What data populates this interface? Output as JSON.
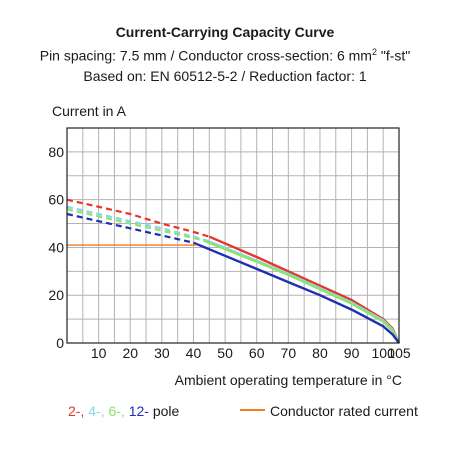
{
  "header": {
    "title": "Current-Carrying Capacity Curve",
    "subtitle_line1_main": "Pin spacing: 7.5 mm / Conductor cross-section: 6 mm",
    "subtitle_line1_sup": "2",
    "subtitle_line1_tail": " \"f-st\"",
    "subtitle_line2": "Based on: EN 60512-5-2 / Reduction factor: 1"
  },
  "legend": {
    "poles_sep": ", ",
    "poles_suffix": " pole",
    "rated_label": "Conductor rated current",
    "rated_color": "#f07d22"
  },
  "chart_data": {
    "type": "line",
    "xlabel": "Ambient operating temperature in °C",
    "ylabel": "Current in A",
    "xlim": [
      0,
      105
    ],
    "ylim": [
      0,
      90
    ],
    "x_ticks": [
      10,
      20,
      30,
      40,
      50,
      60,
      70,
      80,
      90,
      100,
      105
    ],
    "y_ticks": [
      0,
      20,
      40,
      60,
      80
    ],
    "grid": true,
    "series": [
      {
        "name": "2-",
        "color": "#e8342a",
        "dashed_points": [
          [
            0,
            60
          ],
          [
            10,
            57
          ],
          [
            20,
            54
          ],
          [
            30,
            50
          ],
          [
            40,
            46.5
          ],
          [
            45,
            44.5
          ]
        ],
        "solid_points": [
          [
            45,
            44.5
          ],
          [
            60,
            36
          ],
          [
            70,
            30
          ],
          [
            80,
            24
          ],
          [
            90,
            18
          ],
          [
            100,
            10
          ],
          [
            103,
            6
          ],
          [
            105,
            0
          ]
        ]
      },
      {
        "name": "4-",
        "color": "#86d9e3",
        "dashed_points": [
          [
            0,
            57
          ],
          [
            10,
            54
          ],
          [
            20,
            51
          ],
          [
            30,
            48
          ],
          [
            40,
            44.5
          ],
          [
            44,
            43
          ]
        ],
        "solid_points": [
          [
            44,
            43
          ],
          [
            60,
            34.5
          ],
          [
            70,
            29
          ],
          [
            80,
            23
          ],
          [
            90,
            17
          ],
          [
            100,
            9.5
          ],
          [
            103,
            5.5
          ],
          [
            105,
            0
          ]
        ]
      },
      {
        "name": "6-",
        "color": "#8ee26e",
        "dashed_points": [
          [
            0,
            56
          ],
          [
            10,
            53
          ],
          [
            20,
            50
          ],
          [
            30,
            47
          ],
          [
            40,
            44
          ],
          [
            44,
            42.5
          ]
        ],
        "solid_points": [
          [
            44,
            42.5
          ],
          [
            60,
            34
          ],
          [
            70,
            28.5
          ],
          [
            80,
            22.5
          ],
          [
            90,
            16.5
          ],
          [
            100,
            9
          ],
          [
            103,
            5
          ],
          [
            105,
            0
          ]
        ]
      },
      {
        "name": "12-",
        "color": "#1f2fb4",
        "dashed_points": [
          [
            0,
            54
          ],
          [
            10,
            51
          ],
          [
            20,
            48
          ],
          [
            30,
            45
          ],
          [
            40,
            42
          ]
        ],
        "solid_points": [
          [
            40,
            42
          ],
          [
            50,
            36.5
          ],
          [
            60,
            31
          ],
          [
            70,
            25.5
          ],
          [
            80,
            20
          ],
          [
            90,
            14
          ],
          [
            100,
            7
          ],
          [
            103,
            3.5
          ],
          [
            105,
            0
          ]
        ]
      },
      {
        "name": "Conductor rated current",
        "color": "#f07d22",
        "dashed_points": [],
        "solid_points": [
          [
            0,
            41
          ],
          [
            41,
            41
          ]
        ]
      }
    ]
  }
}
